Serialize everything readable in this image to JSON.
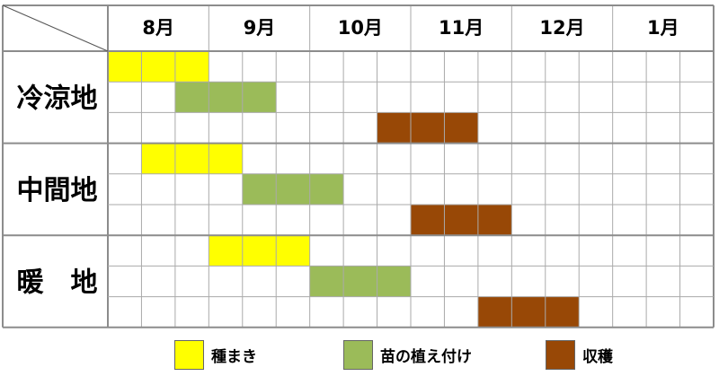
{
  "chart_data": {
    "type": "table",
    "months": [
      "8月",
      "9月",
      "10月",
      "11月",
      "12月",
      "1月"
    ],
    "periods_per_month": 3,
    "colors": {
      "sowing": "#ffff00",
      "planting": "#9bbb59",
      "harvest": "#984806"
    },
    "regions": [
      {
        "name": "冷涼地",
        "rows": [
          {
            "activity": "sowing",
            "start": 0,
            "end": 3
          },
          {
            "activity": "planting",
            "start": 2,
            "end": 5
          },
          {
            "activity": "harvest",
            "start": 8,
            "end": 11
          }
        ]
      },
      {
        "name": "中間地",
        "rows": [
          {
            "activity": "sowing",
            "start": 1,
            "end": 4
          },
          {
            "activity": "planting",
            "start": 4,
            "end": 7
          },
          {
            "activity": "harvest",
            "start": 9,
            "end": 12
          }
        ]
      },
      {
        "name": "暖　地",
        "rows": [
          {
            "activity": "sowing",
            "start": 3,
            "end": 6
          },
          {
            "activity": "planting",
            "start": 6,
            "end": 9
          },
          {
            "activity": "harvest",
            "start": 11,
            "end": 14
          }
        ]
      }
    ]
  },
  "legend": [
    {
      "key": "sowing",
      "label": "種まき"
    },
    {
      "key": "planting",
      "label": "苗の植え付け"
    },
    {
      "key": "harvest",
      "label": "収穫"
    }
  ]
}
